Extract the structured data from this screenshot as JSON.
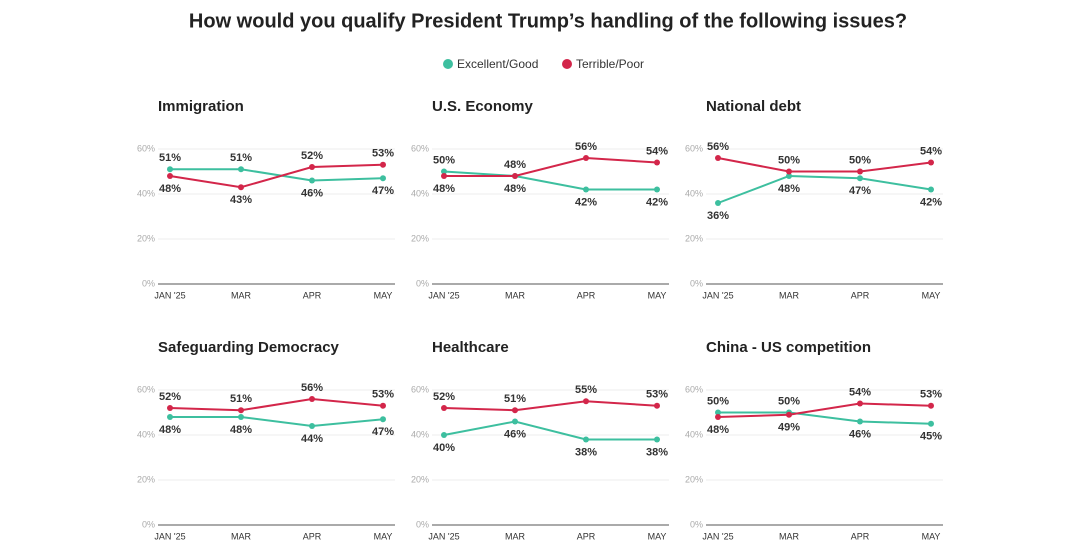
{
  "title": "How would you qualify President Trump’s handling of the following issues?",
  "legend": [
    {
      "name": "Excellent/Good",
      "color": "#3dbf9f"
    },
    {
      "name": "Terrible/Poor",
      "color": "#d3264a"
    }
  ],
  "chart_data": [
    {
      "type": "line",
      "title": "Immigration",
      "categories": [
        "JAN '25",
        "MAR",
        "APR",
        "MAY"
      ],
      "ylim": [
        0,
        60
      ],
      "yticks": [
        {
          "value": 0,
          "label": "0%"
        },
        {
          "value": 20,
          "label": "20%"
        },
        {
          "value": 40,
          "label": "40%"
        },
        {
          "value": 60,
          "label": "60%"
        }
      ],
      "series": [
        {
          "values": [
            51,
            51,
            46,
            47
          ],
          "value_labels": [
            "51%",
            "51%",
            "46%",
            "47%"
          ]
        },
        {
          "values": [
            48,
            43,
            52,
            53
          ],
          "value_labels": [
            "48%",
            "43%",
            "52%",
            "53%"
          ]
        }
      ]
    },
    {
      "type": "line",
      "title": "U.S. Economy",
      "categories": [
        "JAN '25",
        "MAR",
        "APR",
        "MAY"
      ],
      "ylim": [
        0,
        60
      ],
      "yticks": [
        {
          "value": 0,
          "label": "0%"
        },
        {
          "value": 20,
          "label": "20%"
        },
        {
          "value": 40,
          "label": "40%"
        },
        {
          "value": 60,
          "label": "60%"
        }
      ],
      "series": [
        {
          "values": [
            50,
            48,
            42,
            42
          ],
          "value_labels": [
            "50%",
            "48%",
            "42%",
            "42%"
          ]
        },
        {
          "values": [
            48,
            48,
            56,
            54
          ],
          "value_labels": [
            "48%",
            "48%",
            "56%",
            "54%"
          ]
        }
      ]
    },
    {
      "type": "line",
      "title": "National debt",
      "categories": [
        "JAN '25",
        "MAR",
        "APR",
        "MAY"
      ],
      "ylim": [
        0,
        60
      ],
      "yticks": [
        {
          "value": 0,
          "label": "0%"
        },
        {
          "value": 20,
          "label": "20%"
        },
        {
          "value": 40,
          "label": "40%"
        },
        {
          "value": 60,
          "label": "60%"
        }
      ],
      "series": [
        {
          "values": [
            36,
            48,
            47,
            42
          ],
          "value_labels": [
            "36%",
            "48%",
            "47%",
            "42%"
          ]
        },
        {
          "values": [
            56,
            50,
            50,
            54
          ],
          "value_labels": [
            "56%",
            "50%",
            "50%",
            "54%"
          ]
        }
      ]
    },
    {
      "type": "line",
      "title": "Safeguarding Democracy",
      "categories": [
        "JAN '25",
        "MAR",
        "APR",
        "MAY"
      ],
      "ylim": [
        0,
        60
      ],
      "yticks": [
        {
          "value": 0,
          "label": "0%"
        },
        {
          "value": 20,
          "label": "20%"
        },
        {
          "value": 40,
          "label": "40%"
        },
        {
          "value": 60,
          "label": "60%"
        }
      ],
      "series": [
        {
          "values": [
            48,
            48,
            44,
            47
          ],
          "value_labels": [
            "48%",
            "48%",
            "44%",
            "47%"
          ]
        },
        {
          "values": [
            52,
            51,
            56,
            53
          ],
          "value_labels": [
            "52%",
            "51%",
            "56%",
            "53%"
          ]
        }
      ]
    },
    {
      "type": "line",
      "title": "Healthcare",
      "categories": [
        "JAN '25",
        "MAR",
        "APR",
        "MAY"
      ],
      "ylim": [
        0,
        60
      ],
      "yticks": [
        {
          "value": 0,
          "label": "0%"
        },
        {
          "value": 20,
          "label": "20%"
        },
        {
          "value": 40,
          "label": "40%"
        },
        {
          "value": 60,
          "label": "60%"
        }
      ],
      "series": [
        {
          "values": [
            40,
            46,
            38,
            38
          ],
          "value_labels": [
            "40%",
            "46%",
            "38%",
            "38%"
          ]
        },
        {
          "values": [
            52,
            51,
            55,
            53
          ],
          "value_labels": [
            "52%",
            "51%",
            "55%",
            "53%"
          ]
        }
      ]
    },
    {
      "type": "line",
      "title": "China - US competition",
      "categories": [
        "JAN '25",
        "MAR",
        "APR",
        "MAY"
      ],
      "ylim": [
        0,
        60
      ],
      "yticks": [
        {
          "value": 0,
          "label": "0%"
        },
        {
          "value": 20,
          "label": "20%"
        },
        {
          "value": 40,
          "label": "40%"
        },
        {
          "value": 60,
          "label": "60%"
        }
      ],
      "series": [
        {
          "values": [
            50,
            50,
            46,
            45
          ],
          "value_labels": [
            "50%",
            "50%",
            "46%",
            "45%"
          ]
        },
        {
          "values": [
            48,
            49,
            54,
            53
          ],
          "value_labels": [
            "48%",
            "49%",
            "54%",
            "53%"
          ]
        }
      ]
    }
  ]
}
